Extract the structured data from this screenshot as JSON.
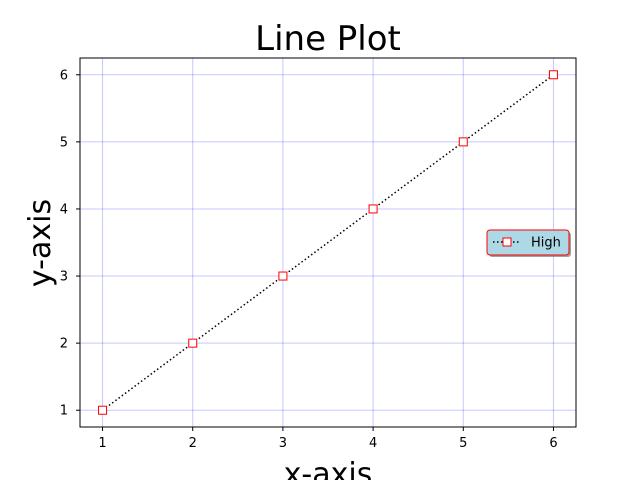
{
  "chart_data": {
    "type": "line",
    "title": "Line Plot",
    "xlabel": "x-axis",
    "ylabel": "y-axis",
    "x": [
      1,
      2,
      3,
      4,
      5,
      6
    ],
    "xlim": [
      0.75,
      6.25
    ],
    "ylim": [
      0.75,
      6.25
    ],
    "xticks": [
      "1",
      "2",
      "3",
      "4",
      "5",
      "6"
    ],
    "yticks": [
      "1",
      "2",
      "3",
      "4",
      "5",
      "6"
    ],
    "grid": true,
    "grid_color": "#0000ff",
    "series": [
      {
        "name": "High",
        "values": [
          1,
          2,
          3,
          4,
          5,
          6
        ],
        "line_style": "dotted",
        "line_color": "#000000",
        "marker": "square",
        "marker_face": "#ffffff",
        "marker_edge": "#ff0000"
      }
    ],
    "legend": {
      "placement": "center-right",
      "background": "#add8e6",
      "edge_color": "#ff0000",
      "shadow": true
    }
  }
}
